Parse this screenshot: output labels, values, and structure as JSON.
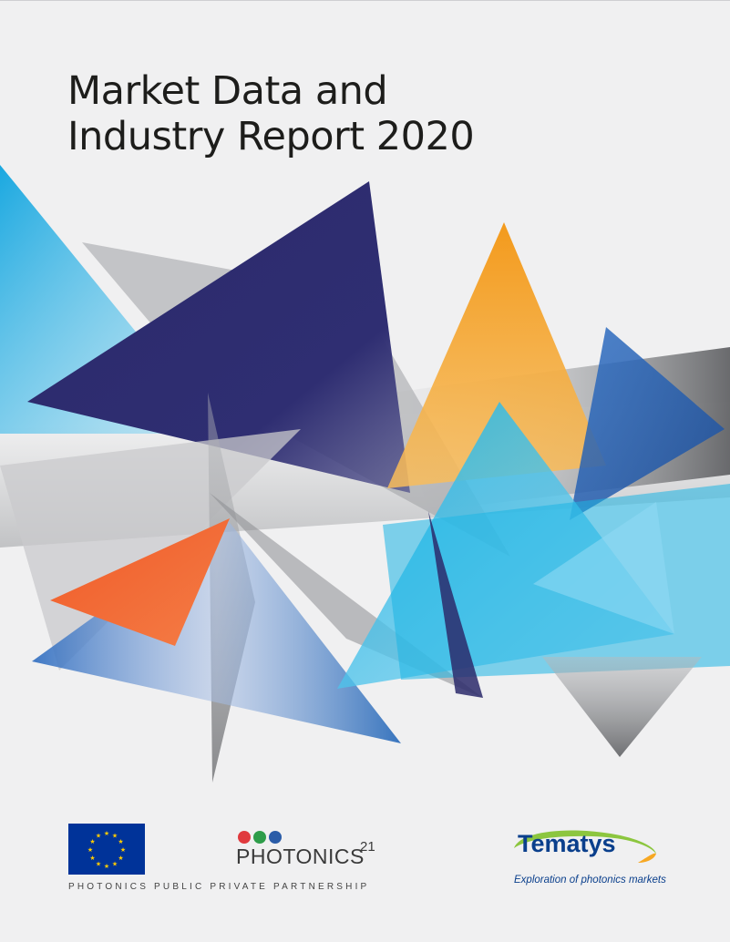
{
  "cover": {
    "title_line1": "Market Data and",
    "title_line2": "Industry Report 2020"
  },
  "logos": {
    "photonics_wordmark": "PHOTONICS",
    "photonics_superscript": "21",
    "photonics_tagline": "PHOTONICS PUBLIC PRIVATE PARTNERSHIP",
    "tematys_name": "Tematys",
    "tematys_tagline": "Exploration of photonics markets",
    "photonics_dot_colors": [
      "#e03a3e",
      "#2e9d4a",
      "#2a5ca8"
    ]
  },
  "colors": {
    "background": "#f0f0f1",
    "navy": "#2b2a6b",
    "cyan": "#1bb4e4",
    "orange": "#f4a12b",
    "red_orange": "#f05a28",
    "blue": "#2467b8",
    "grey": "#8a8c8f",
    "eu_blue": "#003399",
    "eu_star": "#ffcc00"
  }
}
